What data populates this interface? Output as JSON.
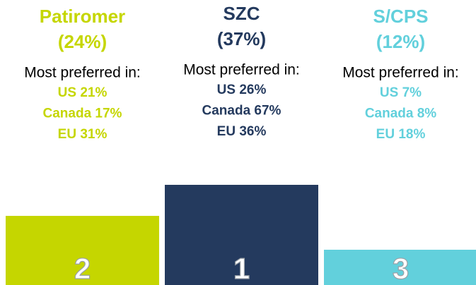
{
  "columns": [
    {
      "name": "Patiromer",
      "share": "(24%)",
      "preferred_label": "Most preferred in:",
      "regions": [
        "US 21%",
        "Canada 17%",
        "EU 31%"
      ],
      "rank": 2,
      "color": "#c5d600"
    },
    {
      "name": "SZC",
      "share": "(37%)",
      "preferred_label": "Most preferred in:",
      "regions": [
        "US 26%",
        "Canada 67%",
        "EU 36%"
      ],
      "rank": 1,
      "color": "#243a5e"
    },
    {
      "name": "S/CPS",
      "share": "(12%)",
      "preferred_label": "Most preferred in:",
      "regions": [
        "US 7%",
        "Canada 8%",
        "EU 18%"
      ],
      "rank": 3,
      "color": "#62d0dc"
    }
  ]
}
